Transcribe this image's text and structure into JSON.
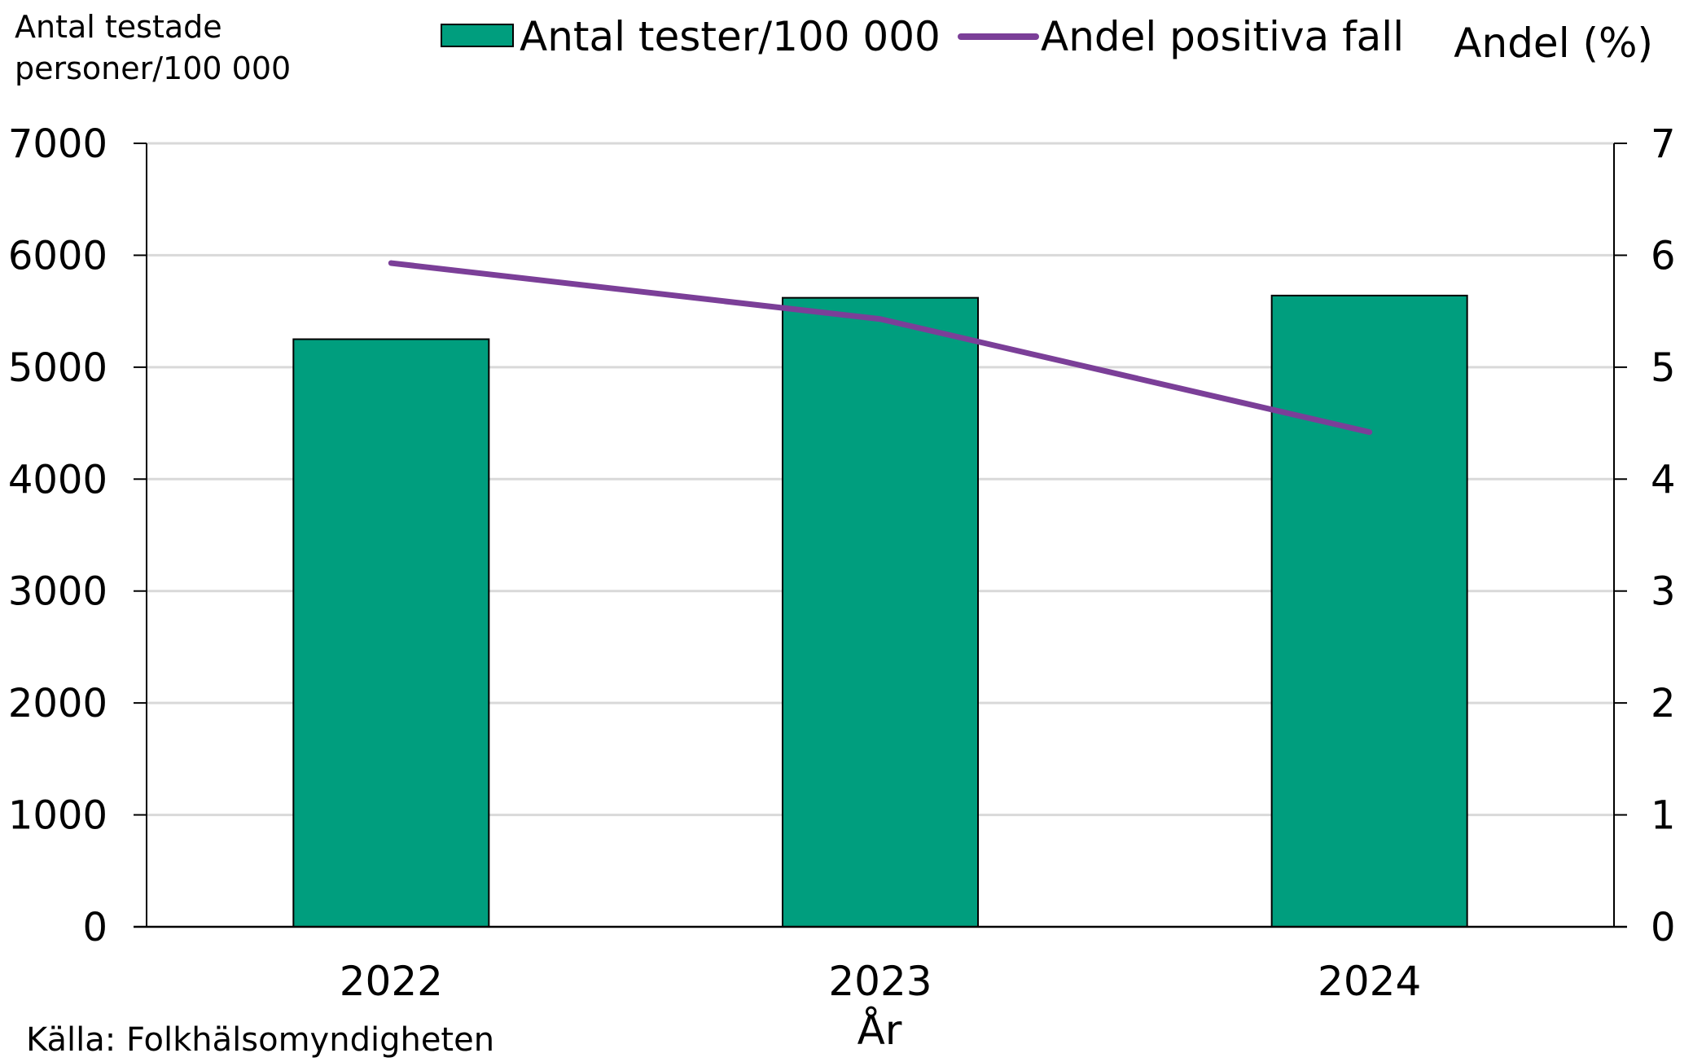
{
  "chart_data": {
    "type": "bar",
    "categories": [
      "2022",
      "2023",
      "2024"
    ],
    "series": [
      {
        "name": "Antal tester/100 000",
        "type": "bar",
        "axis": "left",
        "color": "#009E7E",
        "values": [
          5250,
          5620,
          5640
        ]
      },
      {
        "name": "Andel positiva fall",
        "type": "line",
        "axis": "right",
        "color": "#7B3F98",
        "values": [
          5.93,
          5.43,
          4.42
        ]
      }
    ],
    "left_axis": {
      "title_lines": [
        "Antal testade",
        "personer/100 000"
      ],
      "ylim": [
        0,
        7000
      ],
      "ticks": [
        "0",
        "1000",
        "2000",
        "3000",
        "4000",
        "5000",
        "6000",
        "7000"
      ]
    },
    "right_axis": {
      "title": "Andel (%)",
      "ylim": [
        0,
        7
      ],
      "ticks": [
        "0",
        "1",
        "2",
        "3",
        "4",
        "5",
        "6",
        "7"
      ]
    },
    "xlabel": "År",
    "grid": true,
    "legend_position": "top"
  },
  "source": "Källa: Folkhälsomyndigheten"
}
